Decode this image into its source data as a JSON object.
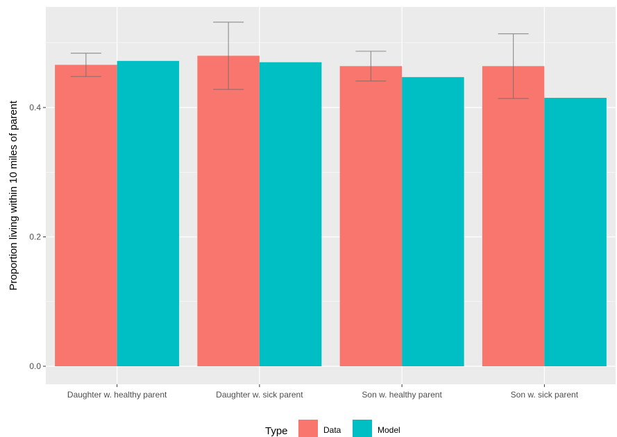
{
  "chart_data": {
    "type": "bar",
    "title": "",
    "xlabel": "",
    "ylabel": "Proportion living within 10 miles of parent",
    "ylim": [
      0,
      0.5
    ],
    "yticks": [
      0.0,
      0.2,
      0.4
    ],
    "ytick_labels": [
      "0.0",
      "0.2",
      "0.4"
    ],
    "categories": [
      "Daughter w. healthy parent",
      "Daughter w. sick parent",
      "Son w. healthy parent",
      "Son w. sick parent"
    ],
    "series": [
      {
        "name": "Data",
        "color": "#F8766D",
        "values": [
          0.466,
          0.48,
          0.464,
          0.464
        ],
        "error_low": [
          0.448,
          0.428,
          0.441,
          0.414
        ],
        "error_high": [
          0.484,
          0.532,
          0.487,
          0.514
        ]
      },
      {
        "name": "Model",
        "color": "#00BFC4",
        "values": [
          0.472,
          0.47,
          0.447,
          0.415
        ]
      }
    ],
    "legend": {
      "title": "Type",
      "position": "bottom"
    },
    "grid": true,
    "panel_background": "#EBEBEB"
  }
}
